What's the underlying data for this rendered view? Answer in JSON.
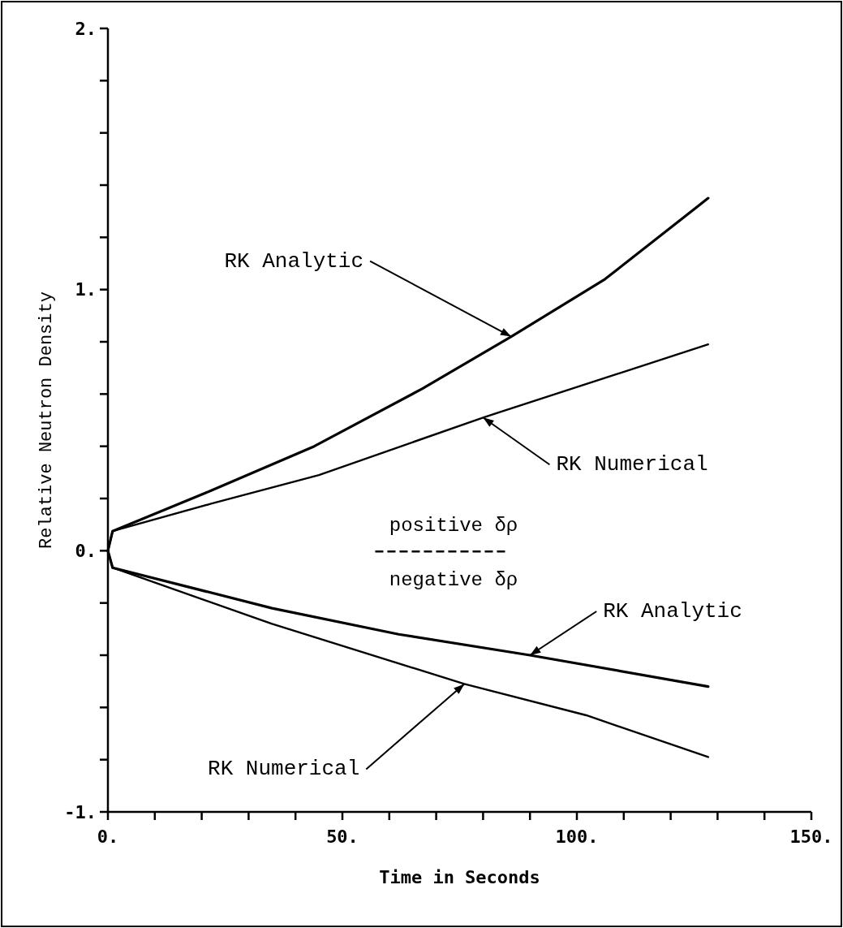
{
  "chart_data": {
    "type": "line",
    "xlabel": "Time in Seconds",
    "ylabel": "Relative Neutron Density",
    "xlim": [
      0,
      150
    ],
    "ylim": [
      -1,
      2
    ],
    "xticks": [
      {
        "value": 0,
        "label": "0."
      },
      {
        "value": 10,
        "label": null
      },
      {
        "value": 20,
        "label": null
      },
      {
        "value": 30,
        "label": null
      },
      {
        "value": 40,
        "label": null
      },
      {
        "value": 50,
        "label": "50."
      },
      {
        "value": 60,
        "label": null
      },
      {
        "value": 70,
        "label": null
      },
      {
        "value": 80,
        "label": null
      },
      {
        "value": 90,
        "label": null
      },
      {
        "value": 100,
        "label": "100."
      },
      {
        "value": 110,
        "label": null
      },
      {
        "value": 120,
        "label": null
      },
      {
        "value": 130,
        "label": null
      },
      {
        "value": 140,
        "label": null
      },
      {
        "value": 150,
        "label": "150."
      }
    ],
    "yticks": [
      {
        "value": -1,
        "label": "-1."
      },
      {
        "value": -0.8,
        "label": null
      },
      {
        "value": -0.6,
        "label": null
      },
      {
        "value": -0.4,
        "label": null
      },
      {
        "value": -0.2,
        "label": null
      },
      {
        "value": 0,
        "label": "0."
      },
      {
        "value": 0.2,
        "label": null
      },
      {
        "value": 0.4,
        "label": null
      },
      {
        "value": 0.6,
        "label": null
      },
      {
        "value": 0.8,
        "label": null
      },
      {
        "value": 1,
        "label": "1."
      },
      {
        "value": 1.2,
        "label": null
      },
      {
        "value": 1.4,
        "label": null
      },
      {
        "value": 1.6,
        "label": null
      },
      {
        "value": 1.8,
        "label": null
      },
      {
        "value": 2,
        "label": "2."
      }
    ],
    "series": [
      {
        "color": "#000000",
        "x": [
          0,
          1,
          22,
          44,
          67,
          86,
          106,
          128
        ],
        "values": [
          0,
          0.075,
          0.23,
          0.4,
          0.62,
          0.82,
          1.04,
          1.35
        ]
      },
      {
        "color": "#000000",
        "x": [
          0,
          1,
          22,
          45,
          80,
          128
        ],
        "values": [
          0,
          0.075,
          0.18,
          0.29,
          0.51,
          0.79
        ]
      },
      {
        "color": "#000000",
        "x": [
          0,
          1,
          35,
          62,
          90,
          128
        ],
        "values": [
          0,
          -0.065,
          -0.22,
          -0.32,
          -0.4,
          -0.52
        ]
      },
      {
        "color": "#000000",
        "x": [
          0,
          1,
          35,
          76,
          102,
          128
        ],
        "values": [
          0,
          -0.065,
          -0.28,
          -0.51,
          -0.63,
          -0.79
        ]
      }
    ],
    "annotations": [
      {
        "text": "RK Analytic",
        "x": 86,
        "y": 0.82
      },
      {
        "text": "RK Numerical",
        "x": 80,
        "y": 0.51
      },
      {
        "text": "RK Analytic",
        "x": 90,
        "y": -0.4
      },
      {
        "text": "RK Numerical",
        "x": 76,
        "y": -0.51
      },
      "positive δρ",
      "negative δρ"
    ],
    "marker": "none",
    "line_style": "solid"
  }
}
